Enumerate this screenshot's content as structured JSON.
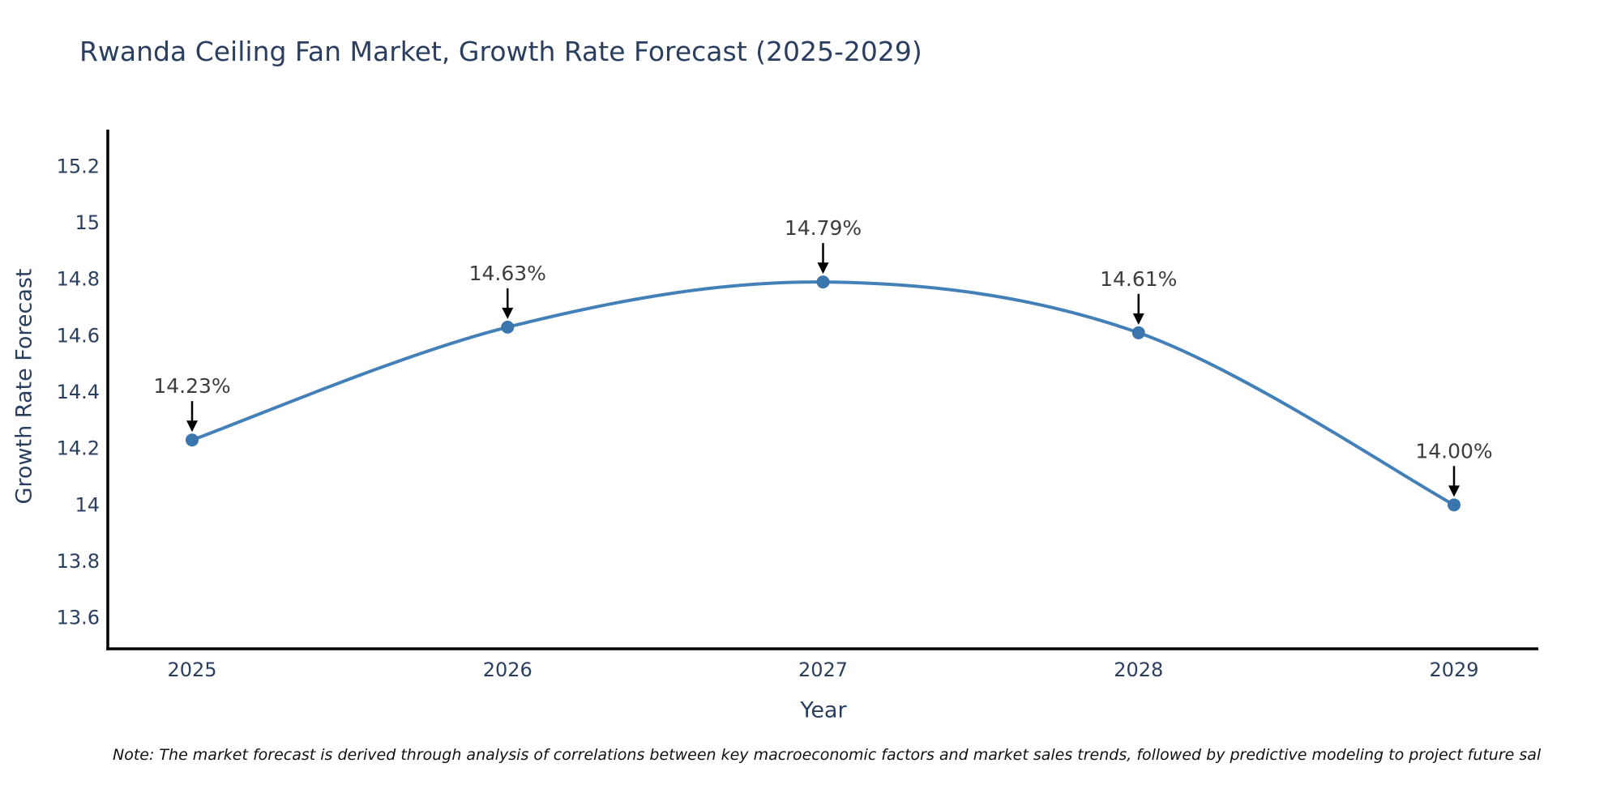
{
  "chart_data": {
    "type": "line",
    "title": "Rwanda Ceiling Fan Market, Growth Rate Forecast (2025-2029)",
    "xlabel": "Year",
    "ylabel": "Growth Rate Forecast",
    "categories": [
      "2025",
      "2026",
      "2027",
      "2028",
      "2029"
    ],
    "series": [
      {
        "name": "Growth Rate Forecast",
        "values": [
          14.23,
          14.63,
          14.79,
          14.61,
          14.0
        ],
        "point_labels": [
          "14.23%",
          "14.63%",
          "14.79%",
          "14.61%",
          "14.00%"
        ]
      }
    ],
    "yticks": [
      "13.6",
      "13.8",
      "14",
      "14.2",
      "14.4",
      "14.6",
      "14.8",
      "15",
      "15.2"
    ],
    "ylim": [
      13.49,
      15.33
    ],
    "line_shape": "spline",
    "grid": false,
    "legend": "none",
    "annotations": "black down-arrows from each value label to its data point",
    "colors": {
      "background": "#ffffff",
      "line": "#4480b8",
      "marker": "#3a76ad",
      "axis": "#000000",
      "tick_label": "#2a3f5f",
      "title": "#2a3f5f",
      "axis_title": "#2a3f5f",
      "annotation_text": "#3d3d3d",
      "annotation_arrow": "#000000",
      "footnote": "#111111"
    }
  },
  "footnote": "Note: The market forecast is derived through analysis of correlations between key macroeconomic factors and market sales trends, followed by predictive modeling to project future sal"
}
